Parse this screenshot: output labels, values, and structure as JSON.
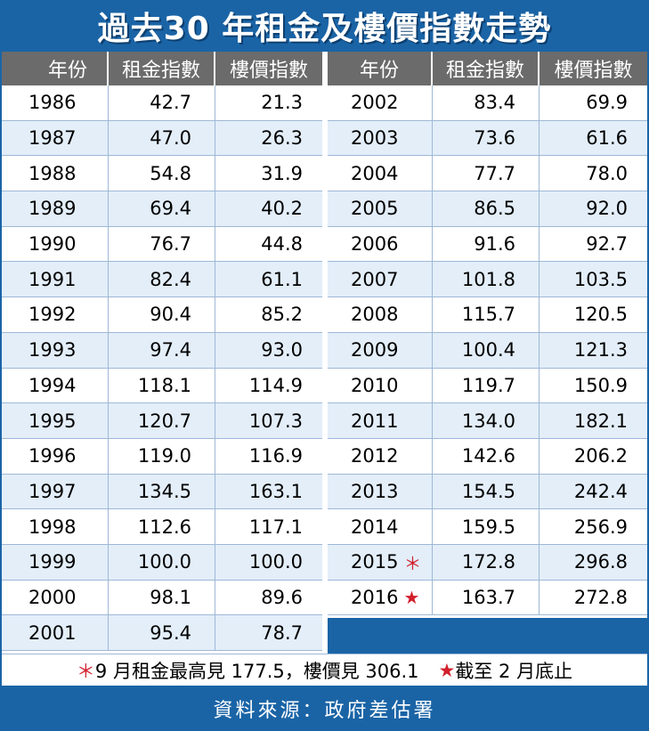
{
  "header": {
    "title": "過去30 年租金及樓價指數走勢"
  },
  "columns": [
    "年份",
    "租金指數",
    "樓價指數"
  ],
  "chart_data": {
    "type": "table",
    "title": "過去30 年租金及樓價指數走勢",
    "columns": [
      "年份",
      "租金指數",
      "樓價指數"
    ],
    "left_rows": [
      {
        "year": "1986",
        "rent": "42.7",
        "price": "21.3"
      },
      {
        "year": "1987",
        "rent": "47.0",
        "price": "26.3"
      },
      {
        "year": "1988",
        "rent": "54.8",
        "price": "31.9"
      },
      {
        "year": "1989",
        "rent": "69.4",
        "price": "40.2"
      },
      {
        "year": "1990",
        "rent": "76.7",
        "price": "44.8"
      },
      {
        "year": "1991",
        "rent": "82.4",
        "price": "61.1"
      },
      {
        "year": "1992",
        "rent": "90.4",
        "price": "85.2"
      },
      {
        "year": "1993",
        "rent": "97.4",
        "price": "93.0"
      },
      {
        "year": "1994",
        "rent": "118.1",
        "price": "114.9"
      },
      {
        "year": "1995",
        "rent": "120.7",
        "price": "107.3"
      },
      {
        "year": "1996",
        "rent": "119.0",
        "price": "116.9"
      },
      {
        "year": "1997",
        "rent": "134.5",
        "price": "163.1"
      },
      {
        "year": "1998",
        "rent": "112.6",
        "price": "117.1"
      },
      {
        "year": "1999",
        "rent": "100.0",
        "price": "100.0"
      },
      {
        "year": "2000",
        "rent": "98.1",
        "price": "89.6"
      },
      {
        "year": "2001",
        "rent": "95.4",
        "price": "78.7"
      }
    ],
    "right_rows": [
      {
        "year": "2002",
        "rent": "83.4",
        "price": "69.9"
      },
      {
        "year": "2003",
        "rent": "73.6",
        "price": "61.6"
      },
      {
        "year": "2004",
        "rent": "77.7",
        "price": "78.0"
      },
      {
        "year": "2005",
        "rent": "86.5",
        "price": "92.0"
      },
      {
        "year": "2006",
        "rent": "91.6",
        "price": "92.7"
      },
      {
        "year": "2007",
        "rent": "101.8",
        "price": "103.5"
      },
      {
        "year": "2008",
        "rent": "115.7",
        "price": "120.5"
      },
      {
        "year": "2009",
        "rent": "100.4",
        "price": "121.3"
      },
      {
        "year": "2010",
        "rent": "119.7",
        "price": "150.9"
      },
      {
        "year": "2011",
        "rent": "134.0",
        "price": "182.1"
      },
      {
        "year": "2012",
        "rent": "142.6",
        "price": "206.2"
      },
      {
        "year": "2013",
        "rent": "154.5",
        "price": "242.4"
      },
      {
        "year": "2014",
        "rent": "159.5",
        "price": "256.9"
      },
      {
        "year": "2015",
        "rent": "172.8",
        "price": "296.8",
        "mark": "＊"
      },
      {
        "year": "2016",
        "rent": "163.7",
        "price": "272.8",
        "mark": "★"
      }
    ]
  },
  "notes": {
    "asterisk_symbol": "＊",
    "asterisk_text": "9 月租金最高見 177.5，樓價見 306.1",
    "star_symbol": "★",
    "star_text": "截至 2 月底止"
  },
  "footer": {
    "source": "資料來源：政府差估署"
  },
  "colors": {
    "brand_blue": "#1a64a6",
    "header_gray": "#6b6b6b",
    "alt_row": "#e3eef9",
    "mark_red": "#d21f2b"
  }
}
